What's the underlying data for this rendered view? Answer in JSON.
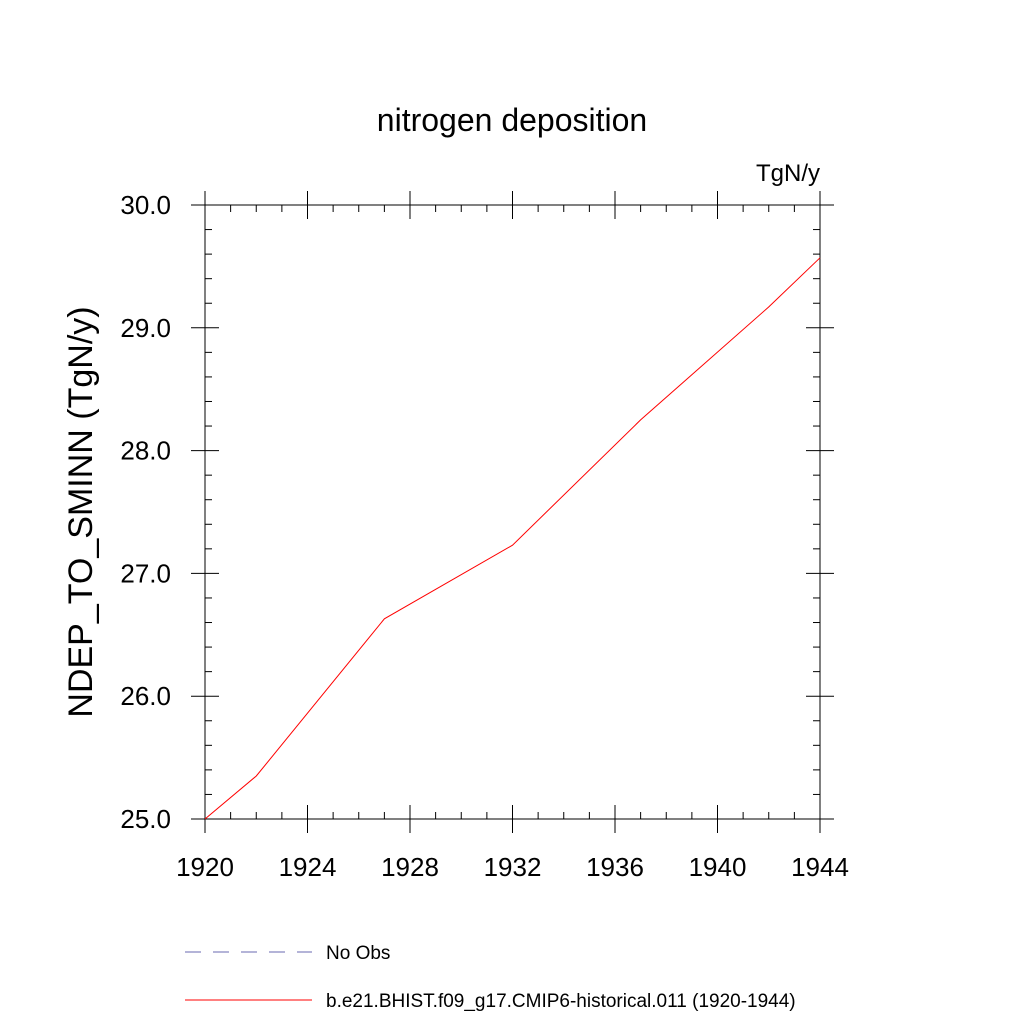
{
  "chart_data": {
    "type": "line",
    "title": "nitrogen deposition",
    "units_label": "TgN/y",
    "ylabel": "NDEP_TO_SMINN  (TgN/y)",
    "xlabel": "",
    "xlim": [
      1920,
      1944
    ],
    "ylim": [
      25.0,
      30.0
    ],
    "x_ticks": [
      1920,
      1924,
      1928,
      1932,
      1936,
      1940,
      1944
    ],
    "y_ticks": [
      "25.0",
      "26.0",
      "27.0",
      "28.0",
      "29.0",
      "30.0"
    ],
    "grid": false,
    "legend_position": "bottom",
    "series": [
      {
        "name": "b.e21.BHIST.f09_g17.CMIP6-historical.011 (1920-1944)",
        "color": "#ff0000",
        "style": "solid",
        "x": [
          1920,
          1922,
          1927,
          1932,
          1937,
          1942,
          1944
        ],
        "y": [
          25.0,
          25.35,
          26.63,
          27.23,
          28.25,
          29.17,
          29.57
        ]
      }
    ],
    "legend": [
      {
        "label": "No Obs",
        "color": "#6a6ab0",
        "style": "dashed"
      },
      {
        "label": "b.e21.BHIST.f09_g17.CMIP6-historical.011 (1920-1944)",
        "color": "#ff0000",
        "style": "solid"
      }
    ]
  }
}
